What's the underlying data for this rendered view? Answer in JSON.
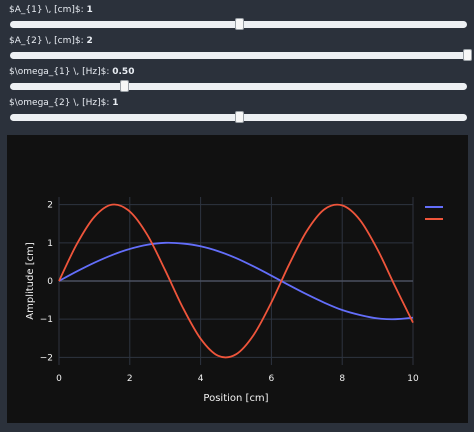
{
  "sliders": [
    {
      "label": "$A_{1} \\, [cm]$:",
      "value_text": "1",
      "fraction": 0.5
    },
    {
      "label": "$A_{2} \\, [cm]$:",
      "value_text": "2",
      "fraction": 1.0
    },
    {
      "label": "$\\omega_{1} \\, [Hz]$:",
      "value_text": "0.50",
      "fraction": 0.25
    },
    {
      "label": "$\\omega_{2} \\, [Hz]$:",
      "value_text": "1",
      "fraction": 0.5
    }
  ],
  "chart_data": {
    "type": "line",
    "xlabel": "Position [cm]",
    "ylabel": "Amplitude [cm]",
    "xlim": [
      0,
      10
    ],
    "ylim": [
      -2.2,
      2.2
    ],
    "x_ticks": [
      0,
      2,
      4,
      6,
      8,
      10
    ],
    "y_ticks": [
      -2,
      -1,
      0,
      1,
      2
    ],
    "grid": true,
    "legend_position": "top-right",
    "series": [
      {
        "color": "#636efa",
        "x": [
          0,
          0.5,
          1,
          1.5,
          2,
          2.5,
          3,
          3.5,
          4,
          4.5,
          5,
          5.5,
          6,
          6.5,
          7,
          7.5,
          8,
          8.5,
          9,
          9.5,
          10
        ],
        "y": [
          0,
          0.25,
          0.48,
          0.68,
          0.84,
          0.95,
          1.0,
          0.98,
          0.91,
          0.78,
          0.6,
          0.38,
          0.14,
          -0.11,
          -0.35,
          -0.57,
          -0.76,
          -0.89,
          -0.98,
          -1.0,
          -0.96
        ]
      },
      {
        "color": "#ef553b",
        "x": [
          0,
          0.5,
          1,
          1.5,
          2,
          2.5,
          3,
          3.5,
          4,
          4.5,
          5,
          5.5,
          6,
          6.5,
          7,
          7.5,
          8,
          8.5,
          9,
          9.5,
          10
        ],
        "y": [
          0,
          0.96,
          1.68,
          2.0,
          1.82,
          1.2,
          0.28,
          -0.7,
          -1.51,
          -1.96,
          -1.92,
          -1.41,
          -0.56,
          0.43,
          1.31,
          1.88,
          1.98,
          1.6,
          0.82,
          -0.15,
          -1.09
        ]
      }
    ]
  }
}
